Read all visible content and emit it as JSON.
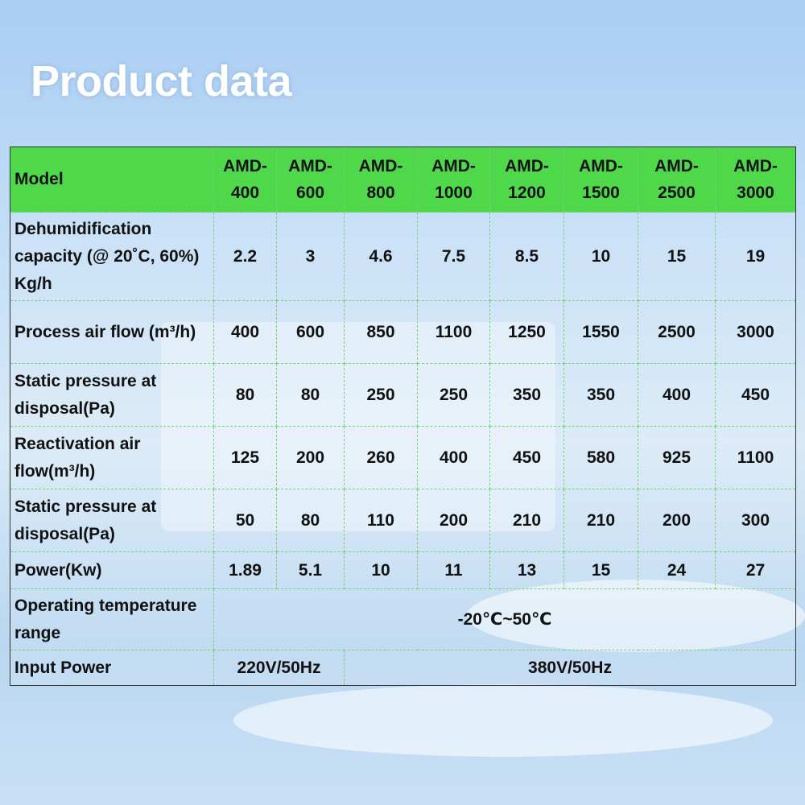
{
  "header": {
    "title": "Product data"
  },
  "table": {
    "columns": [
      "Model",
      "AMD-400",
      "AMD-600",
      "AMD-800",
      "AMD-1000",
      "AMD-1200",
      "AMD-1500",
      "AMD-2500",
      "AMD-3000"
    ],
    "rows": [
      {
        "label": "Dehumidification capacity (@ 20˚C, 60%)  Kg/h",
        "cells": [
          "2.2",
          "3",
          "4.6",
          "7.5",
          "8.5",
          "10",
          "15",
          "19"
        ]
      },
      {
        "label": "Process air flow (m³/h)",
        "cells": [
          "400",
          "600",
          "850",
          "1100",
          "1250",
          "1550",
          "2500",
          "3000"
        ]
      },
      {
        "label": "Static pressure at disposal(Pa)",
        "cells": [
          "80",
          "80",
          "250",
          "250",
          "350",
          "350",
          "400",
          "450"
        ]
      },
      {
        "label": "Reactivation air flow(m³/h)",
        "cells": [
          "125",
          "200",
          "260",
          "400",
          "450",
          "580",
          "925",
          "1100"
        ]
      },
      {
        "label": "Static pressure at disposal(Pa)",
        "cells": [
          "50",
          "80",
          "110",
          "200",
          "210",
          "210",
          "200",
          "300"
        ]
      },
      {
        "label": "Power(Kw)",
        "cells": [
          "1.89",
          "5.1",
          "10",
          "11",
          "13",
          "15",
          "24",
          "27"
        ]
      },
      {
        "label": "Operating temperature range",
        "cells": [
          "-20℃~50℃"
        ]
      },
      {
        "label": "Input Power",
        "cells": [
          "220V/50Hz",
          "380V/50Hz"
        ]
      }
    ]
  }
}
